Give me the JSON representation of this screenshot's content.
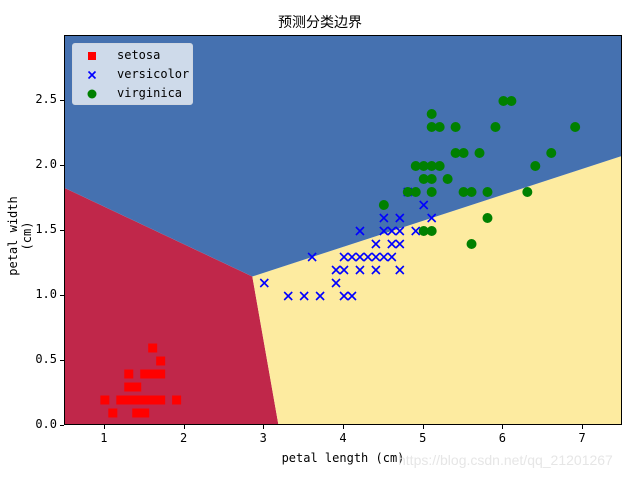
{
  "chart_data": {
    "type": "scatter",
    "title": "预测分类边界",
    "xlabel": "petal length (cm)",
    "ylabel": "petal width (cm)",
    "xlim": [
      0.5,
      7.5
    ],
    "ylim": [
      0.0,
      3.0
    ],
    "xticks": [
      "1",
      "2",
      "3",
      "4",
      "5",
      "6",
      "7"
    ],
    "yticks": [
      "0.0",
      "0.5",
      "1.0",
      "1.5",
      "2.0",
      "2.5"
    ],
    "grid": false,
    "legend_position": "upper left",
    "decision_regions": [
      {
        "class": "setosa",
        "color": "#c0274a",
        "polygon": [
          [
            0.5,
            0.0
          ],
          [
            0.5,
            1.83
          ],
          [
            2.85,
            1.15
          ],
          [
            3.18,
            0.0
          ]
        ]
      },
      {
        "class": "versicolor",
        "color": "#fdeba0",
        "polygon": [
          [
            3.18,
            0.0
          ],
          [
            2.85,
            1.15
          ],
          [
            7.5,
            2.08
          ],
          [
            7.5,
            0.0
          ]
        ]
      },
      {
        "class": "virginica",
        "color": "#4571b0",
        "polygon": [
          [
            0.5,
            1.83
          ],
          [
            0.5,
            3.0
          ],
          [
            7.5,
            3.0
          ],
          [
            7.5,
            2.08
          ],
          [
            2.85,
            1.15
          ]
        ]
      }
    ],
    "series": [
      {
        "name": "setosa",
        "marker": "square",
        "color": "#ff0000",
        "points": [
          [
            1.0,
            0.2
          ],
          [
            1.1,
            0.1
          ],
          [
            1.2,
            0.2
          ],
          [
            1.3,
            0.2
          ],
          [
            1.3,
            0.3
          ],
          [
            1.3,
            0.4
          ],
          [
            1.4,
            0.1
          ],
          [
            1.4,
            0.2
          ],
          [
            1.4,
            0.3
          ],
          [
            1.5,
            0.1
          ],
          [
            1.5,
            0.2
          ],
          [
            1.5,
            0.4
          ],
          [
            1.6,
            0.2
          ],
          [
            1.6,
            0.4
          ],
          [
            1.6,
            0.6
          ],
          [
            1.7,
            0.2
          ],
          [
            1.7,
            0.4
          ],
          [
            1.7,
            0.5
          ],
          [
            1.9,
            0.2
          ],
          [
            1.4,
            0.2
          ],
          [
            1.5,
            0.2
          ],
          [
            1.6,
            0.2
          ]
        ]
      },
      {
        "name": "versicolor",
        "marker": "x",
        "color": "#0000ff",
        "points": [
          [
            3.0,
            1.1
          ],
          [
            3.3,
            1.0
          ],
          [
            3.5,
            1.0
          ],
          [
            3.6,
            1.3
          ],
          [
            3.7,
            1.0
          ],
          [
            3.9,
            1.1
          ],
          [
            3.9,
            1.2
          ],
          [
            4.0,
            1.0
          ],
          [
            4.0,
            1.2
          ],
          [
            4.0,
            1.3
          ],
          [
            4.1,
            1.0
          ],
          [
            4.1,
            1.3
          ],
          [
            4.2,
            1.2
          ],
          [
            4.2,
            1.3
          ],
          [
            4.2,
            1.5
          ],
          [
            4.3,
            1.3
          ],
          [
            4.4,
            1.2
          ],
          [
            4.4,
            1.3
          ],
          [
            4.4,
            1.4
          ],
          [
            4.5,
            1.3
          ],
          [
            4.5,
            1.5
          ],
          [
            4.5,
            1.6
          ],
          [
            4.6,
            1.3
          ],
          [
            4.6,
            1.4
          ],
          [
            4.6,
            1.5
          ],
          [
            4.7,
            1.2
          ],
          [
            4.7,
            1.4
          ],
          [
            4.7,
            1.5
          ],
          [
            4.7,
            1.6
          ],
          [
            4.8,
            1.8
          ],
          [
            4.9,
            1.5
          ],
          [
            5.0,
            1.7
          ],
          [
            5.1,
            1.6
          ]
        ]
      },
      {
        "name": "virginica",
        "marker": "circle",
        "color": "#008000",
        "points": [
          [
            4.5,
            1.7
          ],
          [
            4.8,
            1.8
          ],
          [
            4.9,
            1.8
          ],
          [
            4.9,
            2.0
          ],
          [
            5.0,
            1.5
          ],
          [
            5.0,
            1.9
          ],
          [
            5.0,
            2.0
          ],
          [
            5.1,
            1.5
          ],
          [
            5.1,
            1.8
          ],
          [
            5.1,
            1.9
          ],
          [
            5.1,
            2.0
          ],
          [
            5.1,
            2.3
          ],
          [
            5.1,
            2.4
          ],
          [
            5.2,
            2.0
          ],
          [
            5.2,
            2.3
          ],
          [
            5.3,
            1.9
          ],
          [
            5.4,
            2.1
          ],
          [
            5.4,
            2.3
          ],
          [
            5.5,
            1.8
          ],
          [
            5.5,
            2.1
          ],
          [
            5.6,
            1.4
          ],
          [
            5.6,
            1.8
          ],
          [
            5.7,
            2.1
          ],
          [
            5.8,
            1.6
          ],
          [
            5.8,
            1.8
          ],
          [
            5.9,
            2.3
          ],
          [
            6.0,
            2.5
          ],
          [
            6.1,
            2.5
          ],
          [
            6.3,
            1.8
          ],
          [
            6.4,
            2.0
          ],
          [
            6.6,
            2.1
          ],
          [
            6.9,
            2.3
          ]
        ]
      }
    ]
  },
  "legend": {
    "items": [
      {
        "label": "setosa"
      },
      {
        "label": "versicolor"
      },
      {
        "label": "virginica"
      }
    ]
  },
  "watermark": "https://blog.csdn.net/qq_21201267"
}
